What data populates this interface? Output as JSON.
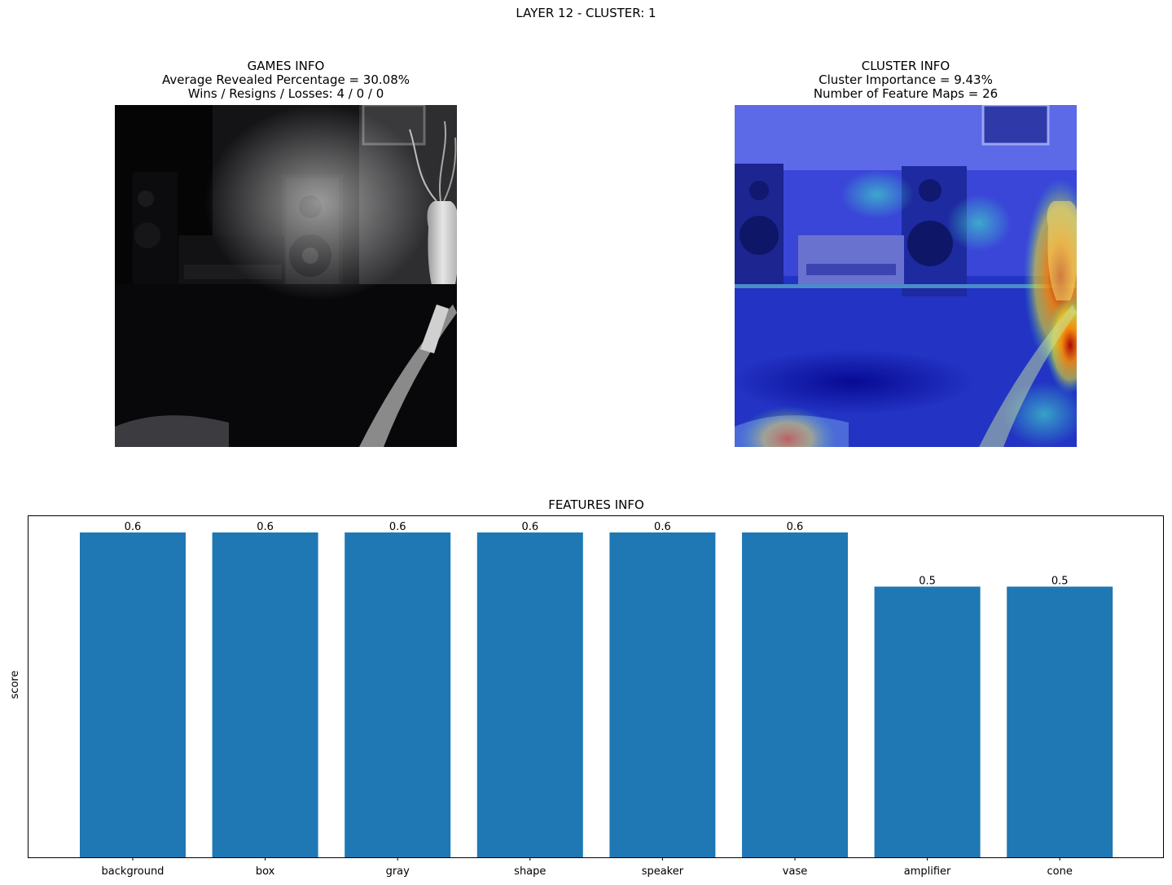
{
  "figure": {
    "suptitle": "LAYER 12 - CLUSTER: 1"
  },
  "games_info": {
    "heading": "GAMES INFO",
    "line1": "Average Revealed Percentage = 30.08%",
    "line2": "Wins / Resigns / Losses: 4 / 0 / 0"
  },
  "cluster_info": {
    "heading": "CLUSTER INFO",
    "line1": "Cluster Importance = 9.43%",
    "line2": "Number of Feature Maps = 26"
  },
  "colors": {
    "bar": "#1f77b4",
    "axes": "#000000"
  },
  "chart_data": {
    "type": "bar",
    "title": "FEATURES INFO",
    "xlabel": "",
    "ylabel": "score",
    "categories": [
      "background",
      "box",
      "gray",
      "shape",
      "speaker",
      "vase",
      "amplifier",
      "cone"
    ],
    "values": [
      0.6,
      0.6,
      0.6,
      0.6,
      0.6,
      0.6,
      0.5,
      0.5
    ],
    "data_labels": [
      "0.6",
      "0.6",
      "0.6",
      "0.6",
      "0.6",
      "0.6",
      "0.5",
      "0.5"
    ],
    "ylim": [
      0,
      0.63
    ],
    "y_ticks_visible": false,
    "grid": false,
    "legend": "none"
  }
}
